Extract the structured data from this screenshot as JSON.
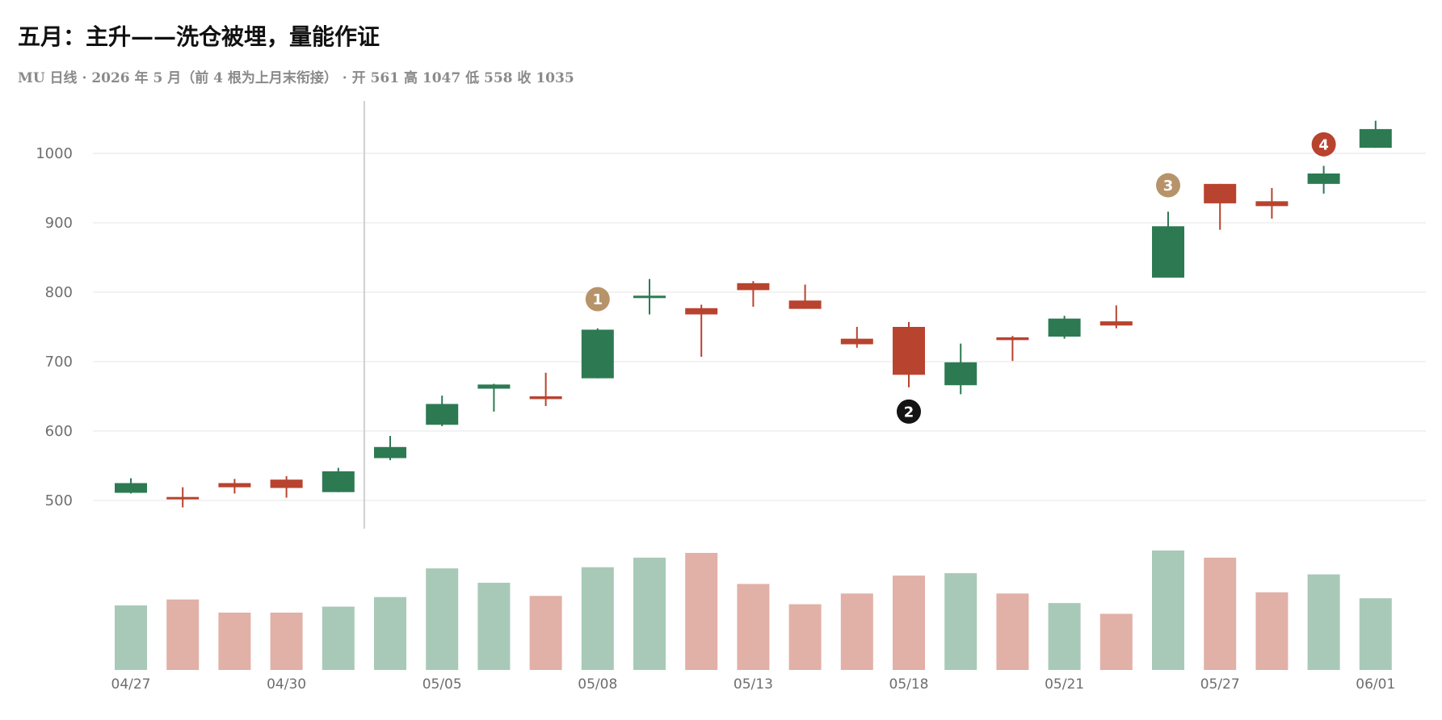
{
  "title": "五月：主升——洗仓被埋，量能作证",
  "subtitle": "MU 日线 · 2026 年 5 月（前 4 根为上月末衔接） · 开 561 高 1047 低 558 收 1035",
  "colors": {
    "up": "#2d7a52",
    "down": "#b8432e",
    "up_volume": "#a8c9b7",
    "down_volume": "#e1b0a7",
    "grid": "#e6e6e6",
    "divider": "#d0d0d0",
    "marker_tan": "#b7936a",
    "marker_black": "#141414",
    "marker_red": "#b8432e"
  },
  "chart_data": {
    "type": "candlestick",
    "ylim": [
      460,
      1060
    ],
    "yticks": [
      500,
      600,
      700,
      800,
      900,
      1000
    ],
    "grid": true,
    "xtick_labels": [
      "04/27",
      "04/30",
      "05/05",
      "05/08",
      "05/13",
      "05/18",
      "05/21",
      "05/27",
      "06/01"
    ],
    "xtick_indices": [
      0,
      3,
      6,
      9,
      12,
      15,
      18,
      21,
      24
    ],
    "divider_after_index": 4,
    "candles": [
      {
        "o": 511,
        "h": 532,
        "l": 510,
        "c": 525
      },
      {
        "o": 505,
        "h": 519,
        "l": 490,
        "c": 504
      },
      {
        "o": 525,
        "h": 531,
        "l": 510,
        "c": 519
      },
      {
        "o": 530,
        "h": 535,
        "l": 504,
        "c": 518
      },
      {
        "o": 512,
        "h": 547,
        "l": 512,
        "c": 542
      },
      {
        "o": 561,
        "h": 593,
        "l": 558,
        "c": 577
      },
      {
        "o": 609,
        "h": 651,
        "l": 607,
        "c": 639
      },
      {
        "o": 661,
        "h": 668,
        "l": 628,
        "c": 667
      },
      {
        "o": 650,
        "h": 684,
        "l": 636,
        "c": 646
      },
      {
        "o": 676,
        "h": 748,
        "l": 676,
        "c": 746
      },
      {
        "o": 793,
        "h": 819,
        "l": 768,
        "c": 795
      },
      {
        "o": 777,
        "h": 782,
        "l": 707,
        "c": 768
      },
      {
        "o": 813,
        "h": 816,
        "l": 779,
        "c": 803
      },
      {
        "o": 788,
        "h": 811,
        "l": 776,
        "c": 776
      },
      {
        "o": 733,
        "h": 750,
        "l": 720,
        "c": 725
      },
      {
        "o": 750,
        "h": 757,
        "l": 663,
        "c": 681
      },
      {
        "o": 666,
        "h": 726,
        "l": 653,
        "c": 699
      },
      {
        "o": 735,
        "h": 737,
        "l": 701,
        "c": 731
      },
      {
        "o": 736,
        "h": 766,
        "l": 733,
        "c": 762
      },
      {
        "o": 758,
        "h": 781,
        "l": 748,
        "c": 752
      },
      {
        "o": 821,
        "h": 916,
        "l": 821,
        "c": 895
      },
      {
        "o": 956,
        "h": 956,
        "l": 890,
        "c": 928
      },
      {
        "o": 931,
        "h": 950,
        "l": 906,
        "c": 924
      },
      {
        "o": 956,
        "h": 982,
        "l": 942,
        "c": 971
      },
      {
        "o": 1008,
        "h": 1047,
        "l": 1008,
        "c": 1035
      }
    ],
    "volume": [
      0.54,
      0.59,
      0.48,
      0.48,
      0.53,
      0.61,
      0.85,
      0.73,
      0.62,
      0.86,
      0.94,
      0.98,
      0.72,
      0.55,
      0.64,
      0.79,
      0.81,
      0.64,
      0.56,
      0.47,
      1.0,
      0.94,
      0.65,
      0.8,
      0.6
    ],
    "markers": [
      {
        "label": "1",
        "index": 9,
        "value": 790,
        "color": "tan"
      },
      {
        "label": "2",
        "index": 15,
        "value": 628,
        "color": "black"
      },
      {
        "label": "3",
        "index": 20,
        "value": 954,
        "color": "tan"
      },
      {
        "label": "4",
        "index": 23,
        "value": 1013,
        "color": "red"
      }
    ]
  }
}
